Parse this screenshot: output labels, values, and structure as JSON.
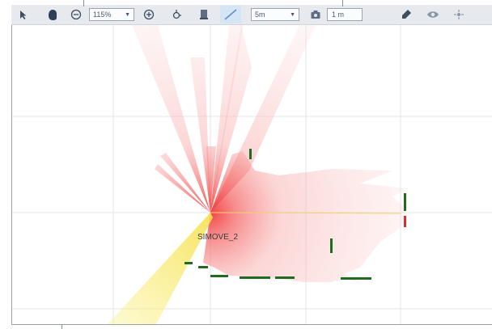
{
  "toolbar": {
    "zoom_value": "115%",
    "range_value": "5m",
    "grid_value": "1 m",
    "icons": [
      "select-arrow-icon",
      "pan-hand-icon",
      "zoom-out-icon",
      "zoom-in-icon",
      "robot-icon",
      "obstacle-icon",
      "line-tool-icon",
      "camera-icon",
      "pin-icon",
      "eye-icon",
      "center-icon"
    ]
  },
  "map": {
    "robot_name": "SIMOVE_2",
    "colors": {
      "laser_scan": "#f04a4a",
      "wall": "#1f6b1f",
      "wall_alert": "#d62e2e",
      "camera_cone": "#fbf07a"
    }
  }
}
